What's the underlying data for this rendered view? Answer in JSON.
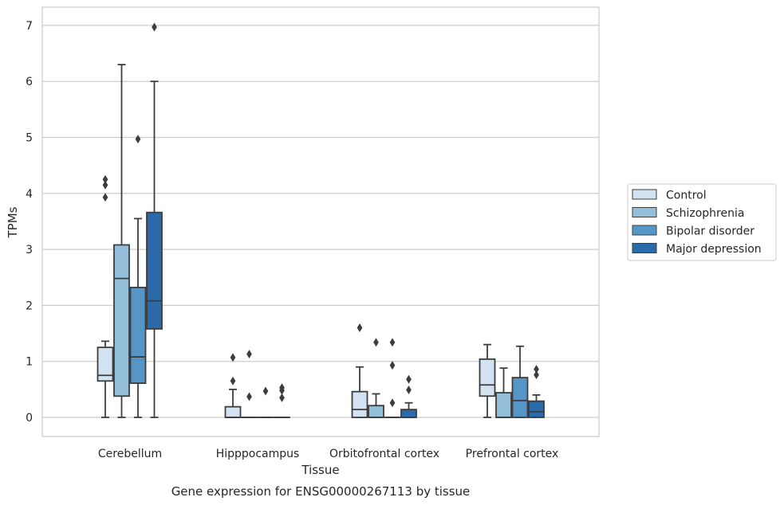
{
  "chart_data": {
    "type": "box",
    "title": "Gene expression for ENSG00000267113 by tissue",
    "xlabel": "Tissue",
    "ylabel": "TPMs",
    "ylim": [
      -0.33,
      7.33
    ],
    "yticks": [
      0,
      1,
      2,
      3,
      4,
      5,
      6,
      7
    ],
    "grid": "horizontal",
    "legend_position": "right",
    "categories": [
      "Cerebellum",
      "Hipppocampus",
      "Orbitofrontal cortex",
      "Prefrontal cortex"
    ],
    "series": [
      {
        "name": "Control",
        "color": "#d2e2f0",
        "boxes": [
          {
            "whislo": 0,
            "q1": 0.65,
            "med": 0.75,
            "q3": 1.25,
            "whishi": 1.36,
            "fliers": [
              3.93,
              4.15,
              4.25
            ]
          },
          {
            "whislo": 0,
            "q1": 0,
            "med": 0,
            "q3": 0.19,
            "whishi": 0.5,
            "fliers": [
              0.65,
              1.07
            ]
          },
          {
            "whislo": 0,
            "q1": 0,
            "med": 0.14,
            "q3": 0.46,
            "whishi": 0.9,
            "fliers": [
              1.6
            ]
          },
          {
            "whislo": 0,
            "q1": 0.38,
            "med": 0.58,
            "q3": 1.04,
            "whishi": 1.3,
            "fliers": []
          }
        ]
      },
      {
        "name": "Schizophrenia",
        "color": "#93bfdb",
        "boxes": [
          {
            "whislo": 0,
            "q1": 0.38,
            "med": 2.48,
            "q3": 3.08,
            "whishi": 6.3,
            "fliers": []
          },
          {
            "whislo": 0,
            "q1": 0,
            "med": 0,
            "q3": 0,
            "whishi": 0,
            "fliers": [
              0.37,
              1.13
            ]
          },
          {
            "whislo": 0,
            "q1": 0,
            "med": 0,
            "q3": 0.21,
            "whishi": 0.42,
            "fliers": [
              1.34
            ]
          },
          {
            "whislo": 0,
            "q1": 0,
            "med": 0,
            "q3": 0.44,
            "whishi": 0.88,
            "fliers": []
          }
        ]
      },
      {
        "name": "Bipolar disorder",
        "color": "#5596c7",
        "boxes": [
          {
            "whislo": 0,
            "q1": 0.61,
            "med": 1.08,
            "q3": 2.32,
            "whishi": 3.55,
            "fliers": [
              4.97
            ]
          },
          {
            "whislo": 0,
            "q1": 0,
            "med": 0,
            "q3": 0,
            "whishi": 0,
            "fliers": [
              0.47
            ]
          },
          {
            "whislo": 0,
            "q1": 0,
            "med": 0,
            "q3": 0,
            "whishi": 0,
            "fliers": [
              0.26,
              0.93,
              1.34
            ]
          },
          {
            "whislo": 0,
            "q1": 0,
            "med": 0.3,
            "q3": 0.71,
            "whishi": 1.27,
            "fliers": []
          }
        ]
      },
      {
        "name": "Major depression",
        "color": "#2a6aab",
        "boxes": [
          {
            "whislo": 0,
            "q1": 1.58,
            "med": 2.08,
            "q3": 3.66,
            "whishi": 6.0,
            "fliers": [
              6.97
            ]
          },
          {
            "whislo": 0,
            "q1": 0,
            "med": 0,
            "q3": 0,
            "whishi": 0,
            "fliers": [
              0.35,
              0.48,
              0.53
            ]
          },
          {
            "whislo": 0,
            "q1": 0,
            "med": 0,
            "q3": 0.14,
            "whishi": 0.26,
            "fliers": [
              0.49,
              0.68
            ]
          },
          {
            "whislo": 0,
            "q1": 0,
            "med": 0.1,
            "q3": 0.29,
            "whishi": 0.4,
            "fliers": [
              0.76,
              0.86
            ]
          }
        ]
      }
    ]
  }
}
